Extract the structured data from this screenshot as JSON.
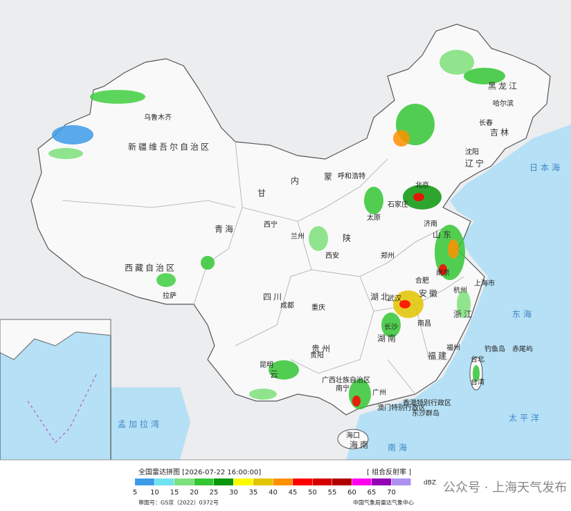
{
  "map": {
    "labels": [
      "乌鲁木齐",
      "新疆维吾尔自治区",
      "西藏自治区",
      "拉萨",
      "青海",
      "西宁",
      "兰州",
      "甘",
      "内",
      "蒙",
      "呼和浩特",
      "北京",
      "石家庄",
      "太原",
      "济南",
      "山东",
      "郑州",
      "西安",
      "陕",
      "四川",
      "成都",
      "重庆",
      "湖北",
      "武汉",
      "湖南",
      "长沙",
      "贵州",
      "贵阳",
      "云",
      "昆明",
      "广西壮族自治区",
      "南宁",
      "广州",
      "香港特别行政区",
      "澳门特别行政区",
      "东沙群岛",
      "海口",
      "海南",
      "南昌",
      "福建",
      "福州",
      "浙江",
      "杭州",
      "上海市",
      "南京",
      "合肥",
      "安徽",
      "台湾",
      "台北",
      "钓鱼岛",
      "赤尾屿",
      "黑龙江",
      "哈尔滨",
      "吉林",
      "长春",
      "辽宁",
      "沈阳",
      "日本海",
      "东海",
      "太平洋",
      "南海",
      "孟加拉湾"
    ]
  },
  "footer": {
    "title": "全国雷达拼图 [2026-07-22 16:00:00]",
    "product": "[ 组合反射率 ]",
    "unit": "dBZ",
    "approval": "审图号：GS京（2022）0372号",
    "producer": "中国气象局雷达气象中心",
    "watermark": "公众号 · 上海天气发布"
  },
  "legend": {
    "items": [
      {
        "value": 5,
        "color": "#3d9be9"
      },
      {
        "value": 10,
        "color": "#6fe3ef"
      },
      {
        "value": 15,
        "color": "#7ee07a"
      },
      {
        "value": 20,
        "color": "#34c734"
      },
      {
        "value": 25,
        "color": "#0a960a"
      },
      {
        "value": 30,
        "color": "#fafa00"
      },
      {
        "value": 35,
        "color": "#e2c400"
      },
      {
        "value": 40,
        "color": "#ff9000"
      },
      {
        "value": 45,
        "color": "#ff0000"
      },
      {
        "value": 50,
        "color": "#d40000"
      },
      {
        "value": 55,
        "color": "#b00000"
      },
      {
        "value": 60,
        "color": "#ff00f0"
      },
      {
        "value": 65,
        "color": "#9400b4"
      },
      {
        "value": 70,
        "color": "#ad90f0"
      }
    ]
  }
}
